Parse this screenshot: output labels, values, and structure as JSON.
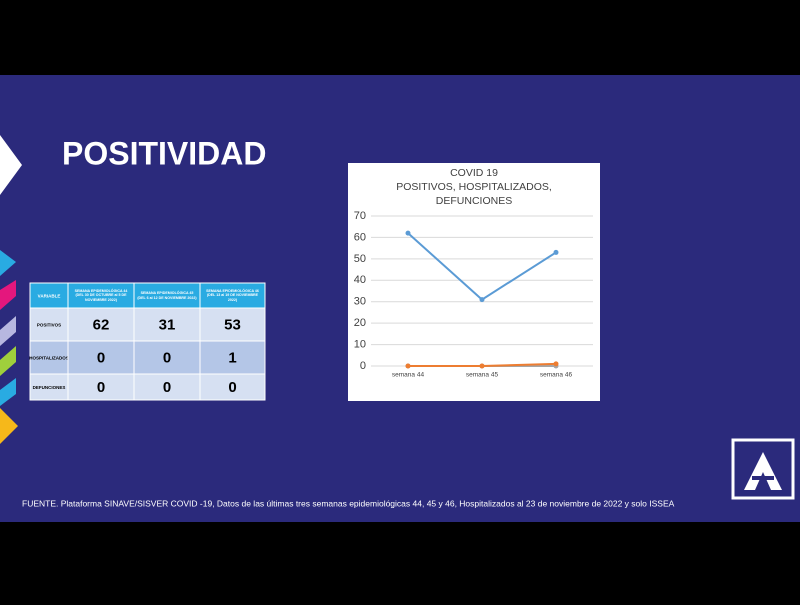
{
  "slide": {
    "title": "POSITIVIDAD",
    "table": {
      "header": [
        "VARIABLE",
        "SEMANA EPIDEMIOLÓGICA 44 (DEL 30 DE OCTUBRE al 5 DE NOVIEMBRE 2022)",
        "SEMANA EPIDEMIOLÓGICA 45 (DEL 6 al 12 DE NOVIEMBRE 2022)",
        "SEMANA EPIDEMIOLÓGICA 46 (DEL 13 al 19 DE NOVIEMBRE 2022)"
      ],
      "rows": [
        [
          "POSITIVOS",
          "62",
          "31",
          "53"
        ],
        [
          "HOSPITALIZADOS",
          "0",
          "0",
          "1"
        ],
        [
          "DEFUNCIONES",
          "0",
          "0",
          "0"
        ]
      ]
    },
    "footer": "FUENTE. Plataforma SINAVE/SISVER COVID -19, Datos de las últimas tres semanas epidemiológicas 44, 45 y 46,  Hospitalizados al 23 de noviembre de 2022 y solo ISSEA"
  },
  "chart_data": {
    "type": "line",
    "title": [
      "COVID 19",
      "POSITIVOS, HOSPITALIZADOS,",
      "DEFUNCIONES"
    ],
    "categories": [
      "semana 44",
      "semana 45",
      "semana 46"
    ],
    "series": [
      {
        "color": "#5b9bd5",
        "values": [
          62,
          31,
          53
        ]
      },
      {
        "color": "#a5a5a5",
        "values": [
          0,
          0,
          0
        ]
      },
      {
        "color": "#ed7d31",
        "values": [
          0,
          0,
          1
        ]
      }
    ],
    "ylim": [
      0,
      70
    ],
    "yticks": [
      0,
      10,
      20,
      30,
      40,
      50,
      60,
      70
    ],
    "grid": true
  }
}
